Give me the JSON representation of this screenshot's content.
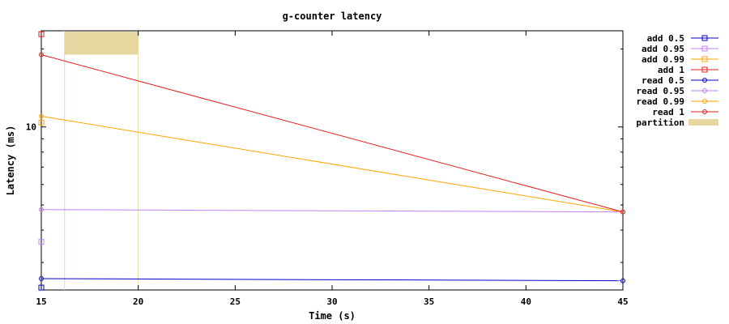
{
  "chart_data": {
    "type": "line",
    "title": "g-counter latency",
    "xlabel": "Time (s)",
    "ylabel": "Latency (ms)",
    "xlim": [
      15,
      45
    ],
    "ylim": [
      2.35,
      23.5
    ],
    "yscale": "log",
    "xticks": [
      "15",
      "20",
      "25",
      "30",
      "35",
      "40",
      "45"
    ],
    "yticks": [
      "10"
    ],
    "grid": false,
    "legend_position": "right",
    "series": [
      {
        "name": "add 0.5",
        "color": "#0000cc",
        "marker": "square",
        "points": [
          [
            15,
            2.4
          ]
        ]
      },
      {
        "name": "add 0.95",
        "color": "#c080ff",
        "marker": "square",
        "points": [
          [
            15,
            3.6
          ]
        ]
      },
      {
        "name": "add 0.99",
        "color": "#ffa500",
        "marker": "square",
        "points": [
          [
            15,
            10.4
          ]
        ]
      },
      {
        "name": "add 1",
        "color": "#e51e1e",
        "marker": "square",
        "points": [
          [
            15,
            22.8
          ]
        ]
      },
      {
        "name": "read 0.5",
        "color": "#0000cc",
        "marker": "circle",
        "points": [
          [
            15,
            2.6
          ],
          [
            45,
            2.55
          ]
        ]
      },
      {
        "name": "read 0.95",
        "color": "#c080ff",
        "marker": "circle",
        "points": [
          [
            15,
            4.8
          ],
          [
            45,
            4.7
          ]
        ]
      },
      {
        "name": "read 0.99",
        "color": "#ffa500",
        "marker": "circle",
        "points": [
          [
            15,
            11.0
          ],
          [
            45,
            4.7
          ]
        ]
      },
      {
        "name": "read 1",
        "color": "#e51e1e",
        "marker": "circle",
        "points": [
          [
            15,
            19.0
          ],
          [
            45,
            4.7
          ]
        ]
      }
    ],
    "partitions": {
      "name": "partition",
      "color": "#e6d7a0",
      "intervals": [
        [
          16.2,
          20
        ]
      ],
      "band_y": [
        19.0,
        23.3
      ]
    }
  }
}
